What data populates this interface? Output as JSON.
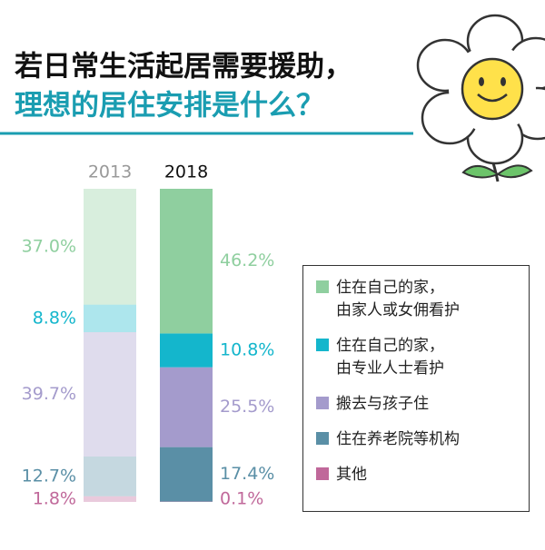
{
  "chart_data": {
    "type": "bar",
    "stacked": true,
    "title": [
      "若日常生活起居需要援助，",
      "理想的居住安排是什么？"
    ],
    "categories": [
      "2013",
      "2018"
    ],
    "series": [
      {
        "name": "住在自己的家，\n由家人或女佣看护",
        "color": "#8fcf9f",
        "values": [
          37.0,
          46.2
        ],
        "value_labels": [
          "37.0%",
          "46.2%"
        ]
      },
      {
        "name": "住在自己的家，\n由专业人士看护",
        "color": "#14b6cc",
        "values": [
          8.8,
          10.8
        ],
        "value_labels": [
          "8.8%",
          "10.8%"
        ]
      },
      {
        "name": "搬去与孩子住",
        "color": "#a49bcc",
        "values": [
          39.7,
          25.5
        ],
        "value_labels": [
          "39.7%",
          "25.5%"
        ]
      },
      {
        "name": "住在养老院等机构",
        "color": "#5a8fa6",
        "values": [
          12.7,
          17.4
        ],
        "value_labels": [
          "12.7%",
          "17.4%"
        ]
      },
      {
        "name": "其他",
        "color": "#c0689a",
        "values": [
          1.8,
          0.1
        ],
        "value_labels": [
          "1.8%",
          "0.1%"
        ]
      }
    ]
  }
}
